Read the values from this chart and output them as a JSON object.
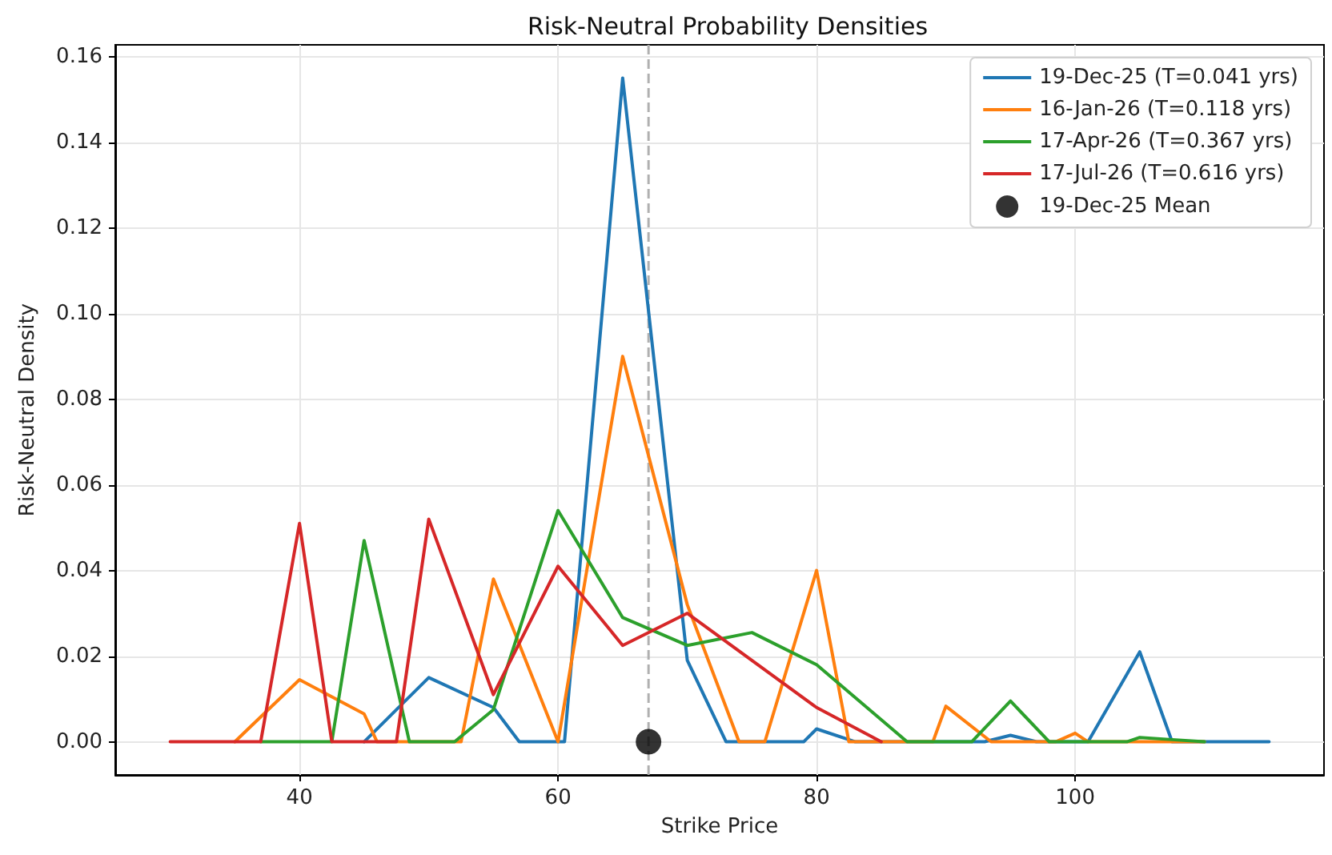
{
  "chart_data": {
    "type": "line",
    "title": "Risk-Neutral Probability Densities",
    "xlabel": "Strike Price",
    "ylabel": "Risk-Neutral Density",
    "xlim": [
      25.75,
      119.25
    ],
    "xticks": [
      40,
      60,
      80,
      100
    ],
    "ylim": [
      -0.00775,
      0.16275
    ],
    "yticks": [
      {
        "value": 0,
        "label": "0.00"
      },
      {
        "value": 0.02,
        "label": "0.02"
      },
      {
        "value": 0.04,
        "label": "0.04"
      },
      {
        "value": 0.06,
        "label": "0.06"
      },
      {
        "value": 0.08,
        "label": "0.08"
      },
      {
        "value": 0.1,
        "label": "0.10"
      },
      {
        "value": 0.12,
        "label": "0.12"
      },
      {
        "value": 0.14,
        "label": "0.14"
      },
      {
        "value": 0.16,
        "label": "0.16"
      }
    ],
    "grid": true,
    "legend": "top right",
    "marker": "none",
    "line_style": "solid",
    "series": [
      {
        "name": "19-Dec-25 (T=0.041 yrs)",
        "color": "#1f77b4",
        "x": [
          45,
          50,
          55,
          57,
          60.5,
          65,
          70,
          73,
          79,
          80,
          83,
          93,
          95,
          97,
          101,
          105,
          107.5,
          115
        ],
        "values": [
          0,
          0.015,
          0.008,
          0,
          0,
          0.155,
          0.019,
          0,
          0,
          0.003,
          0,
          0,
          0.0015,
          0,
          0,
          0.021,
          0,
          0
        ]
      },
      {
        "name": "16-Jan-26 (T=0.118 yrs)",
        "color": "#ff7f0e",
        "x": [
          35,
          40,
          45,
          46,
          52.5,
          55,
          60,
          65,
          70,
          74,
          76,
          80,
          82.5,
          89,
          90,
          93.5,
          98.5,
          100,
          101,
          110
        ],
        "values": [
          0,
          0.0145,
          0.0065,
          0,
          0,
          0.038,
          0,
          0.09,
          0.032,
          0,
          0,
          0.04,
          0,
          0,
          0.0083,
          0,
          0,
          0.002,
          0,
          0
        ]
      },
      {
        "name": "17-Apr-26 (T=0.367 yrs)",
        "color": "#2ca02c",
        "x": [
          37,
          42.5,
          45,
          48.5,
          52,
          55,
          60,
          65,
          70,
          75,
          80,
          87,
          92,
          95,
          98,
          104,
          105,
          107.5,
          110
        ],
        "values": [
          0,
          0,
          0.047,
          0,
          0,
          0.0075,
          0.054,
          0.029,
          0.0225,
          0.0255,
          0.018,
          0,
          0,
          0.0095,
          0,
          0,
          0.001,
          0.0005,
          0
        ]
      },
      {
        "name": "17-Jul-26 (T=0.616 yrs)",
        "color": "#d62728",
        "x": [
          30,
          37,
          40,
          42.5,
          47.5,
          50,
          55,
          60,
          65,
          70,
          80,
          85
        ],
        "values": [
          0,
          0,
          0.051,
          0,
          0,
          0.052,
          0.011,
          0.041,
          0.0225,
          0.03,
          0.008,
          0
        ]
      },
      {
        "name": "19-Dec-25 Mean",
        "type": "scatter",
        "marker": "circle",
        "color": "#000000",
        "x": [
          67
        ],
        "values": [
          0
        ]
      }
    ],
    "ref_lines": [
      {
        "axis": "x",
        "value": 67,
        "color": "#b0b0b0",
        "line_style": "dashed"
      }
    ]
  }
}
